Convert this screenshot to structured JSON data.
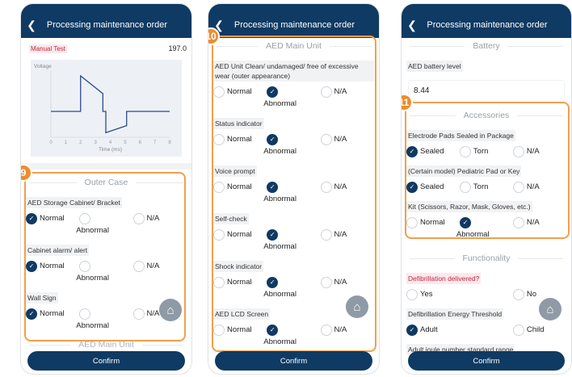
{
  "header_title": "Processing maintenance order",
  "confirm": "Confirm",
  "p1": {
    "manual_test_label": "Manual Test",
    "manual_test_value": "197.0",
    "section": "Outer Case",
    "next_section": "AED Main Unit",
    "badge": "9",
    "questions": [
      {
        "label": "AED Storage Cabinet/ Bracket",
        "options": [
          "Normal",
          "Abnormal",
          "N/A"
        ],
        "selected": 0
      },
      {
        "label": "Cabinet alarm/ alert",
        "options": [
          "Normal",
          "Abnormal",
          "N/A"
        ],
        "selected": 0
      },
      {
        "label": "Wall Sign",
        "options": [
          "Normal",
          "Abnormal",
          "N/A"
        ],
        "selected": 0
      }
    ]
  },
  "chart_data": {
    "type": "line",
    "ylabel": "Voltage",
    "xlabel": "Time (ms)",
    "xlim": [
      0,
      8
    ],
    "xticks": [
      "0",
      "1",
      "2",
      "3",
      "4",
      "5",
      "6",
      "7",
      "8"
    ],
    "x": [
      0,
      2,
      2,
      3.5,
      3.5,
      3.7,
      3.7,
      5.1,
      5.1,
      8
    ],
    "y": [
      0,
      0,
      1,
      0.5,
      0,
      0,
      -0.6,
      -0.4,
      0,
      0
    ]
  },
  "p2": {
    "section": "AED Main Unit",
    "badge": "10",
    "questions": [
      {
        "label": "AED Unit Clean/ undamaged/ free of excessive wear (outer appearance)",
        "options": [
          "Normal",
          "Abnormal",
          "N/A"
        ],
        "selected": 1
      },
      {
        "label": "Status indicator",
        "options": [
          "Normal",
          "Abnormal",
          "N/A"
        ],
        "selected": 1
      },
      {
        "label": "Voice prompt",
        "options": [
          "Normal",
          "Abnormal",
          "N/A"
        ],
        "selected": 1
      },
      {
        "label": "Self-check",
        "options": [
          "Normal",
          "Abnormal",
          "N/A"
        ],
        "selected": 1
      },
      {
        "label": "Shock indicator",
        "options": [
          "Normal",
          "Abnormal",
          "N/A"
        ],
        "selected": 1
      },
      {
        "label": "AED LCD Screen",
        "options": [
          "Normal",
          "Abnormal",
          "N/A"
        ],
        "selected": 1
      }
    ]
  },
  "p3": {
    "battery_section": "Battery",
    "battery_label": "AED battery level",
    "battery_value": "8.44",
    "section": "Accessories",
    "badge": "11",
    "questions": [
      {
        "label": "Electrode Pads Sealed in Package",
        "options": [
          "Sealed",
          "Torn",
          "N/A"
        ],
        "selected": 0
      },
      {
        "label": "(Certain model) Pediatric Pad or Key",
        "options": [
          "Sealed",
          "Torn",
          "N/A"
        ],
        "selected": 0
      },
      {
        "label": "Kit (Scissors, Razor, Mask, Gloves, etc.)",
        "options": [
          "Normal",
          "Abnormal",
          "N/A"
        ],
        "selected": 1
      }
    ],
    "func_section": "Functionality",
    "func_questions": [
      {
        "label": "Defibrillation delivered?",
        "options": [
          "Yes",
          "",
          "No"
        ],
        "selected": -1,
        "red": true
      },
      {
        "label": "Defibrillation Energy Threshold",
        "options": [
          "Adult",
          "",
          "Child"
        ],
        "selected": 0
      }
    ],
    "last_label": "Adult joule number standard range"
  }
}
